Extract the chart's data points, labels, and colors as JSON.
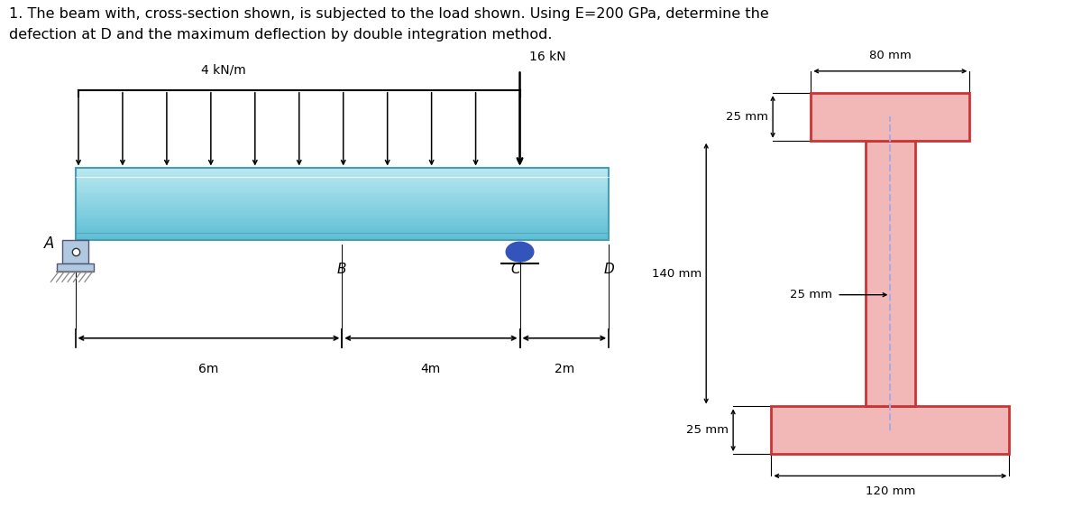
{
  "title_line1": "1. The beam with, cross-section shown, is subjected to the load shown. Using E=200 GPa, determine the",
  "title_line2": "defection at D and the maximum deflection by double integration method.",
  "title_fontsize": 11.5,
  "bg_color": "#ffffff",
  "beam_top_color": "#b8e8f0",
  "beam_bot_color": "#5bbdd4",
  "beam_border_color": "#4a9db5",
  "dist_load_label": "4 kN/m",
  "point_load_label": "16 kN",
  "label_A": "A",
  "label_B": "B",
  "label_C": "C",
  "label_D": "D",
  "dim_6m": "6m",
  "dim_4m": "4m",
  "dim_2m": "2m",
  "I_beam_fill": "#f2b8b8",
  "I_beam_edge": "#cc3333",
  "I_dashed_color": "#aaaadd",
  "dim_80mm": "80 mm",
  "dim_25mm_top": "25 mm",
  "dim_25mm_web": "25 mm",
  "dim_140mm": "140 mm",
  "dim_25mm_bot": "25 mm",
  "dim_120mm": "120 mm",
  "roller_color": "#3355bb"
}
